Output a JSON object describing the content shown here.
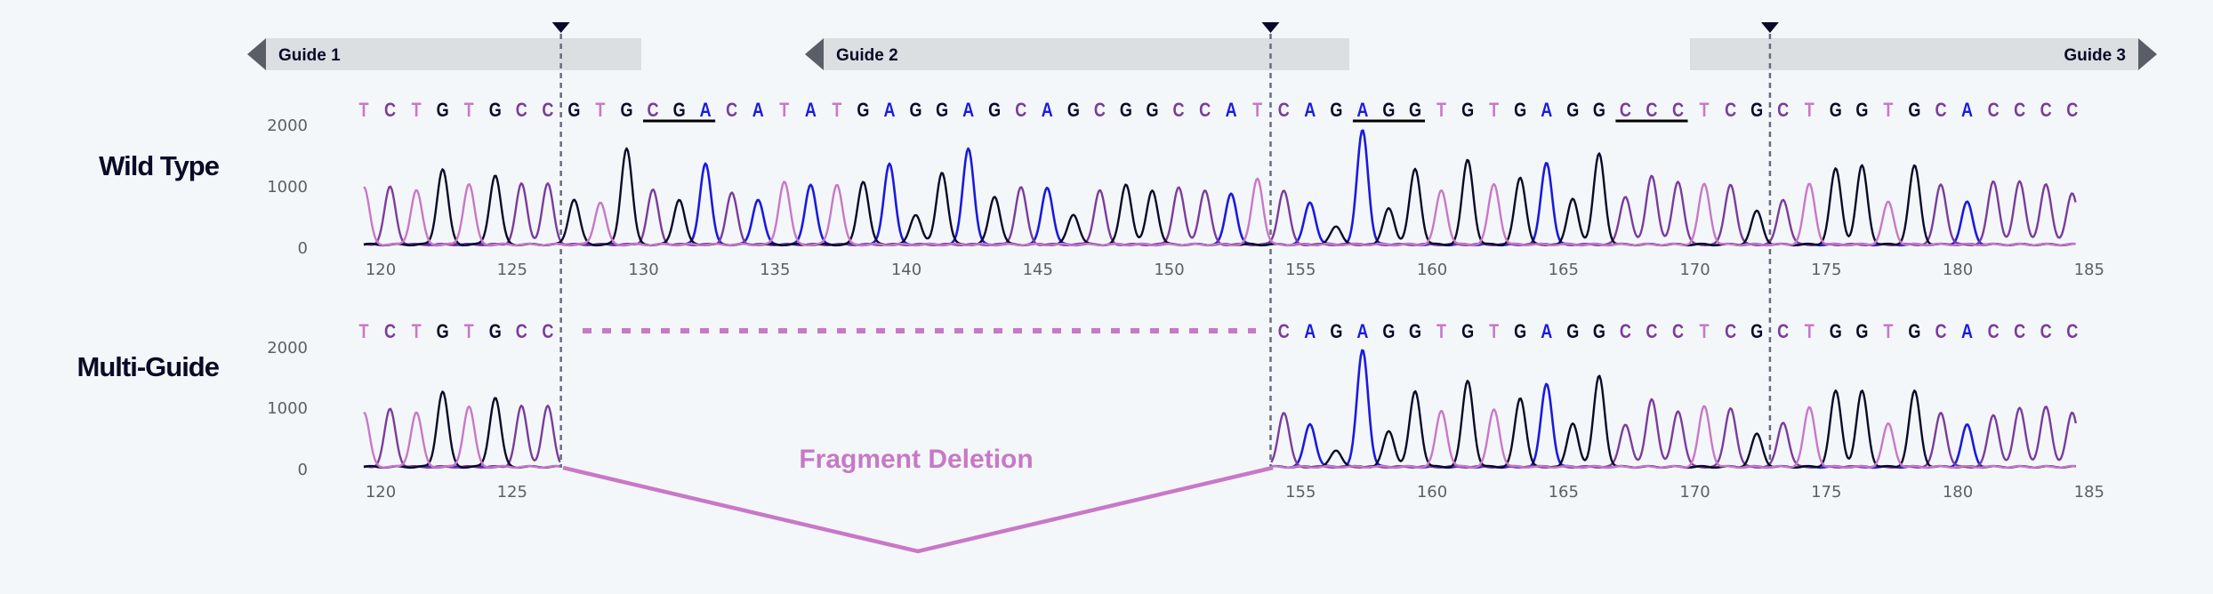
{
  "rows": {
    "wild_type": {
      "label": "Wild Type",
      "sequence": "TCTGTGCCGTGCGACATATGAGGAGCAGCGGCCATCAGAGGTGTGAGGCCCTCGCTGGTGCACCCC"
    },
    "multi_guide": {
      "label": "Multi-Guide",
      "sequence": "TCTGTGCC---------------------------CAGAGGTGTGAGGCCCTCGCTGGTGCACCCC"
    }
  },
  "guides": [
    {
      "label": "Guide 1",
      "direction": "left",
      "cut_after_position": 127
    },
    {
      "label": "Guide 2",
      "direction": "left",
      "cut_after_position": 154
    },
    {
      "label": "Guide 3",
      "direction": "right",
      "cut_after_position": 173
    }
  ],
  "underlined_codons": [
    {
      "text": "CGA",
      "start_position": 131
    },
    {
      "text": "AGG",
      "start_position": 158
    },
    {
      "text": "CCC",
      "start_position": 168
    }
  ],
  "annotation": {
    "fragment_deletion": "Fragment Deletion"
  },
  "base_colors": {
    "T": "#c878c8",
    "C": "#7a3c9c",
    "G": "#0a0a28",
    "A": "#1a1ae0"
  },
  "chart_data": {
    "type": "line",
    "title": "",
    "start_position": 120,
    "end_position": 185,
    "y_ticks": [
      "0",
      "1000",
      "2000"
    ],
    "ylim": [
      0,
      2000
    ],
    "x_ticks_wild_type": [
      "120",
      "125",
      "130",
      "135",
      "140",
      "145",
      "150",
      "155",
      "160",
      "165",
      "170",
      "175",
      "180",
      "185"
    ],
    "x_ticks_multi_guide": [
      "120",
      "125",
      "155",
      "160",
      "165",
      "170",
      "175",
      "180",
      "185"
    ],
    "series": [
      {
        "row": "wild_type",
        "peak_heights": [
          950,
          950,
          900,
          1250,
          1000,
          1150,
          1000,
          1000,
          750,
          700,
          1600,
          900,
          750,
          1350,
          850,
          750,
          1050,
          1000,
          1000,
          1050,
          1350,
          500,
          1200,
          1600,
          800,
          950,
          950,
          500,
          900,
          1000,
          900,
          950,
          900,
          850,
          1100,
          900,
          700,
          300,
          1900,
          600,
          1250,
          900,
          1400,
          1000,
          1100,
          1350,
          750,
          1500,
          800,
          1150,
          1050,
          1000,
          1000,
          550,
          750,
          1000,
          1250,
          1300,
          700,
          1300,
          1000,
          700,
          1050,
          1050,
          1000,
          850
        ]
      },
      {
        "row": "multi_guide",
        "peak_heights": [
          900,
          950,
          900,
          1250,
          1000,
          1150,
          1000,
          1000,
          null,
          null,
          null,
          null,
          null,
          null,
          null,
          null,
          null,
          null,
          null,
          null,
          null,
          null,
          null,
          null,
          null,
          null,
          null,
          null,
          null,
          null,
          null,
          null,
          null,
          null,
          null,
          900,
          710,
          270,
          1940,
          590,
          1250,
          930,
          1420,
          950,
          1130,
          1370,
          710,
          1500,
          710,
          1130,
          930,
          1000,
          980,
          540,
          740,
          980,
          1250,
          1250,
          710,
          1250,
          900,
          690,
          860,
          980,
          1000,
          900
        ]
      }
    ]
  }
}
